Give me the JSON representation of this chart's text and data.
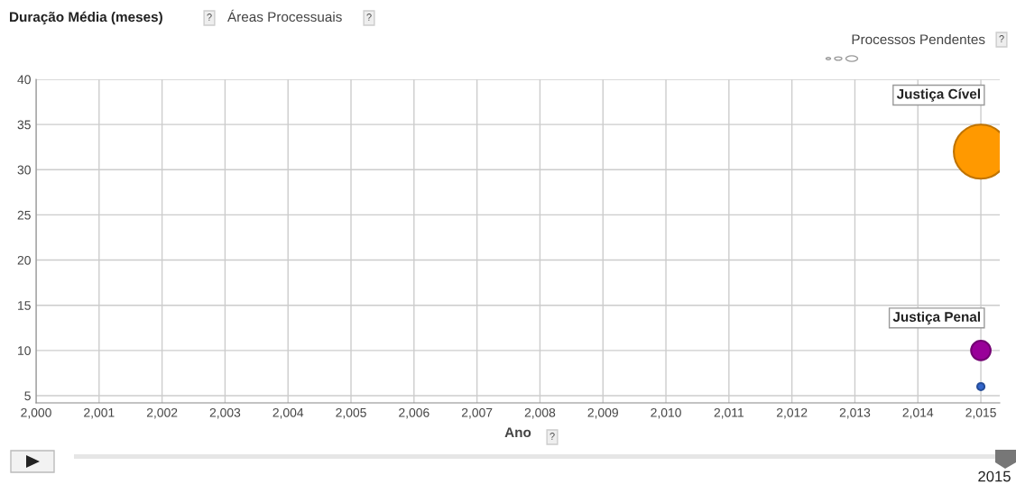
{
  "chart_data": {
    "type": "bubble",
    "ylabel": "Duração Média (meses)",
    "legend_title": "Áreas Processuais",
    "xlabel": "Ano",
    "annotations": [
      "?",
      "?",
      "Processos Pendentes",
      "?",
      "?",
      "2015"
    ],
    "x": [
      2015
    ],
    "series": [
      {
        "name": "Justiça Cível",
        "color": "#ff9900",
        "values": [
          32
        ],
        "sizes": [
          1
        ]
      },
      {
        "name": "Justiça Penal",
        "color": "#990099",
        "values": [
          10
        ],
        "sizes": [
          0.13
        ]
      },
      {
        "color": "#3366cc",
        "values": [
          6
        ],
        "sizes": [
          0.018
        ]
      }
    ],
    "xlim": [
      2000,
      2015.3
    ],
    "xticks": [
      {
        "value": 2000,
        "label": "2,000"
      },
      {
        "value": 2001,
        "label": "2,001"
      },
      {
        "value": 2002,
        "label": "2,002"
      },
      {
        "value": 2003,
        "label": "2,003"
      },
      {
        "value": 2004,
        "label": "2,004"
      },
      {
        "value": 2005,
        "label": "2,005"
      },
      {
        "value": 2006,
        "label": "2,006"
      },
      {
        "value": 2007,
        "label": "2,007"
      },
      {
        "value": 2008,
        "label": "2,008"
      },
      {
        "value": 2009,
        "label": "2,009"
      },
      {
        "value": 2010,
        "label": "2,010"
      },
      {
        "value": 2011,
        "label": "2,011"
      },
      {
        "value": 2012,
        "label": "2,012"
      },
      {
        "value": 2013,
        "label": "2,013"
      },
      {
        "value": 2014,
        "label": "2,014"
      },
      {
        "value": 2015,
        "label": "2,015"
      }
    ],
    "ylim": [
      4.2,
      40
    ],
    "yticks": [
      5,
      10,
      15,
      20,
      25,
      30,
      35,
      40
    ],
    "grid": true
  }
}
